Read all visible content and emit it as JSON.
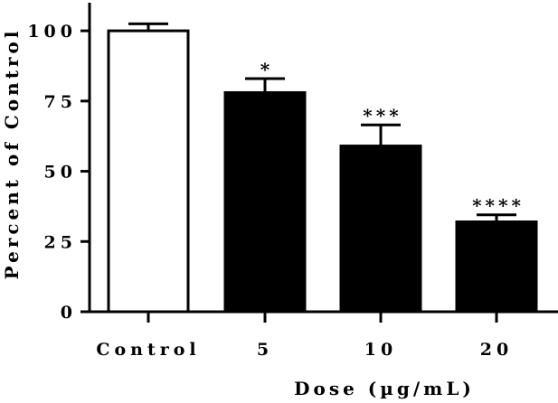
{
  "chart_data": {
    "type": "bar",
    "categories": [
      "Control",
      "5",
      "10",
      "20"
    ],
    "values": [
      100,
      78,
      59,
      32
    ],
    "errors": [
      2.5,
      5,
      7.5,
      2.5
    ],
    "significance": [
      "",
      "*",
      "***",
      "****"
    ],
    "bar_colors": [
      "#ffffff",
      "#000000",
      "#000000",
      "#000000"
    ],
    "title": "",
    "xlabel": "Dose (µg/mL)",
    "ylabel": "Percent of Control",
    "ylim": [
      0,
      110
    ],
    "yticks": [
      0,
      25,
      50,
      75,
      100
    ],
    "ytick_labels": [
      "0",
      "25",
      "50",
      "75",
      "100"
    ],
    "grid": false,
    "legend": "none"
  }
}
